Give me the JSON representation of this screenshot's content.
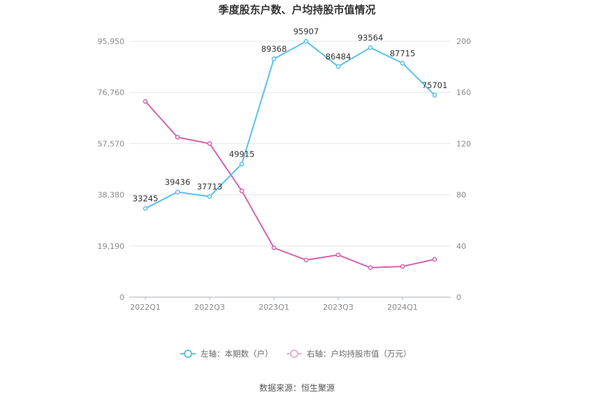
{
  "chart_data": {
    "type": "line",
    "title": "季度股东户数、户均持股市值情况",
    "categories": [
      "2022Q1",
      "2022Q2",
      "2022Q3",
      "2022Q4",
      "2023Q1",
      "2023Q2",
      "2023Q3",
      "2023Q4",
      "2024Q1",
      "2024Q2"
    ],
    "x_tick_labels": [
      "2022Q1",
      "2022Q3",
      "2023Q1",
      "2023Q3",
      "2024Q1"
    ],
    "y_left": {
      "ticks": [
        "0",
        "19,190",
        "38,380",
        "57,570",
        "76,760",
        "95,950"
      ],
      "lim": [
        0,
        95950
      ]
    },
    "y_right": {
      "ticks": [
        "0",
        "40",
        "80",
        "120",
        "160",
        "200"
      ],
      "lim": [
        0,
        200
      ]
    },
    "grid": true,
    "legend_position": "bottom",
    "series": [
      {
        "name": "左轴：本期数（户）",
        "axis": "left",
        "color": "#5bc0eb",
        "values": [
          33245,
          39436,
          37713,
          49915,
          89368,
          95907,
          86484,
          93564,
          87715,
          75701
        ],
        "labels": [
          "33245",
          "39436",
          "37713",
          "49915",
          "89368",
          "95907",
          "86484",
          "93564",
          "87715",
          "75701"
        ]
      },
      {
        "name": "右轴：户均持股市值（万元）",
        "axis": "right",
        "color": "#d264ac",
        "values": [
          153,
          125,
          120,
          83,
          38.5,
          29,
          33,
          23,
          24,
          29.5
        ]
      }
    ],
    "source": "数据来源：恒生聚源"
  }
}
